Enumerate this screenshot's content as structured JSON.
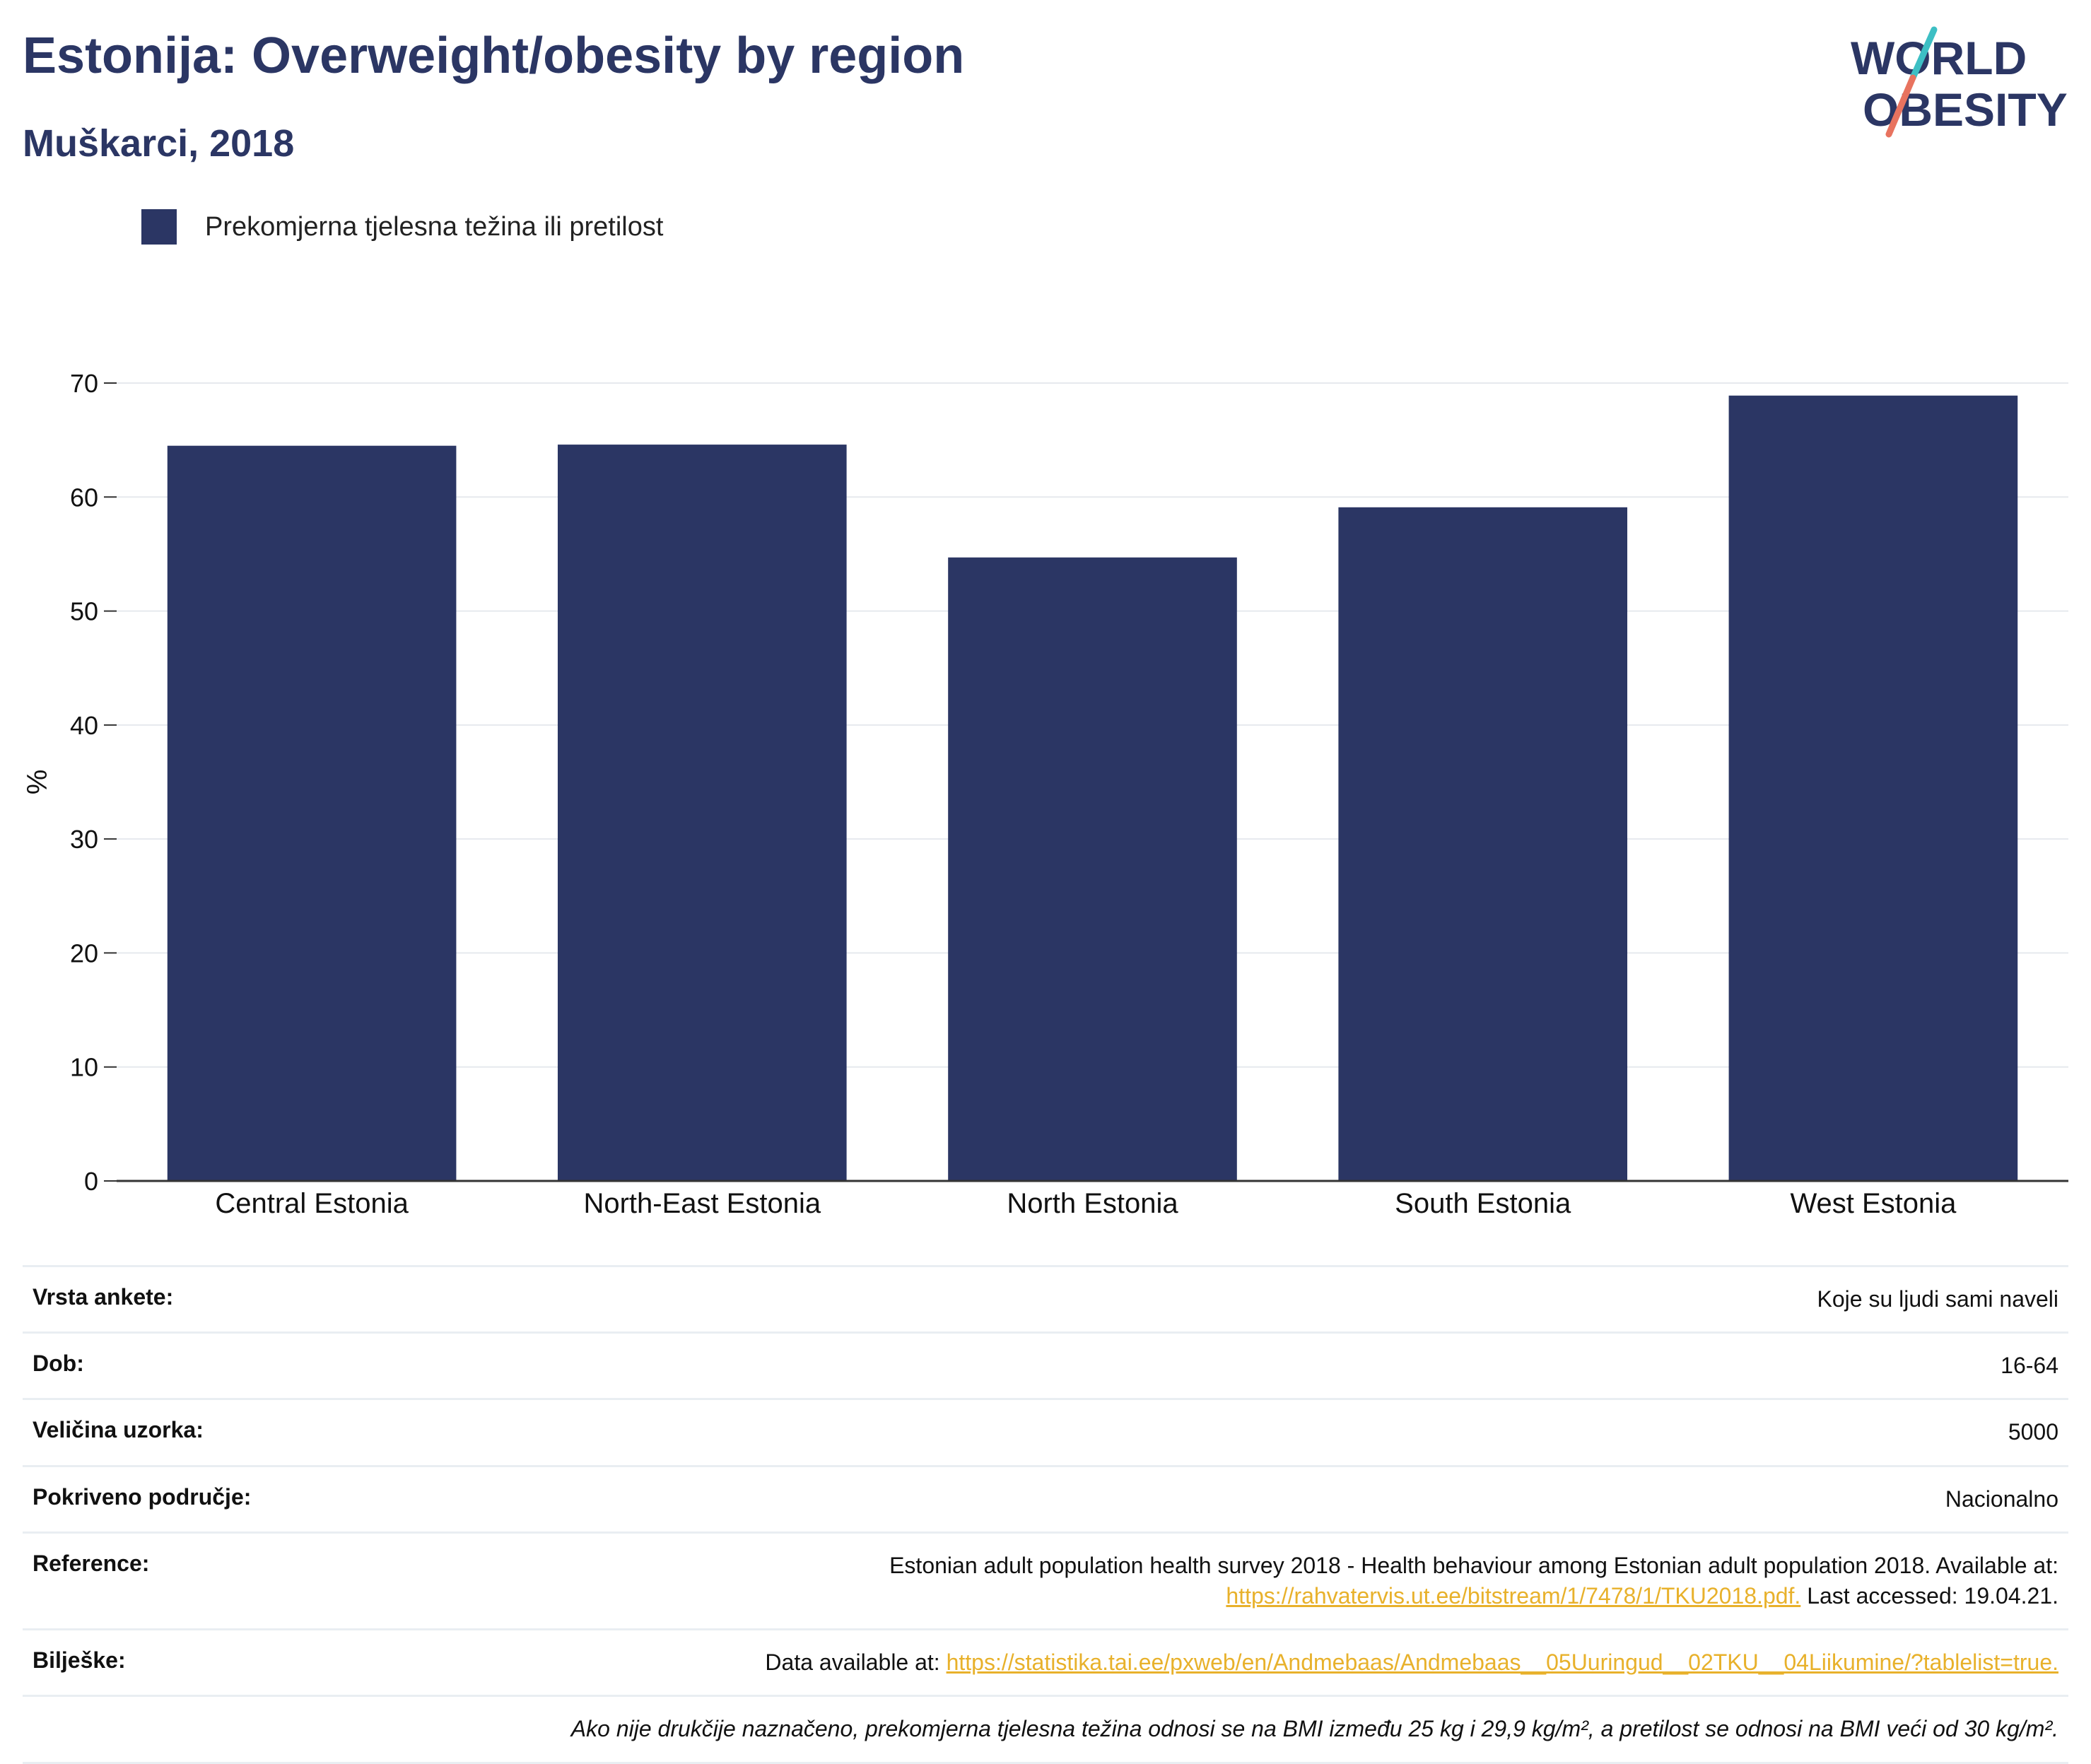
{
  "header": {
    "title": "Estonija: Overweight/obesity by region",
    "subtitle": "Muškarci, 2018"
  },
  "logo": {
    "line1": "WORLD",
    "line2": "OBESITY"
  },
  "legend": {
    "label": "Prekomjerna tjelesna težina ili pretilost"
  },
  "colors": {
    "bar": "#2b3664",
    "accent_teal": "#3dbfc4",
    "accent_red": "#e8735f",
    "link": "#e8b12b"
  },
  "chart_data": {
    "type": "bar",
    "categories": [
      "Central Estonia",
      "North-East Estonia",
      "North Estonia",
      "South Estonia",
      "West Estonia"
    ],
    "series": [
      {
        "name": "Prekomjerna tjelesna težina ili pretilost",
        "values": [
          64.5,
          64.6,
          54.7,
          59.1,
          68.9
        ]
      }
    ],
    "ylabel": "%",
    "ylim": [
      0,
      70
    ],
    "yticks": [
      0,
      10,
      20,
      30,
      40,
      50,
      60,
      70
    ],
    "grid": true,
    "legend_position": "top-left"
  },
  "info": {
    "survey_type_label": "Vrsta ankete:",
    "survey_type_value": "Koje su ljudi sami naveli",
    "age_label": "Dob:",
    "age_value": "16-64",
    "sample_label": "Veličina uzorka:",
    "sample_value": "5000",
    "coverage_label": "Pokriveno područje:",
    "coverage_value": "Nacionalno",
    "reference_label": "Reference:",
    "reference_text": "Estonian adult population health survey 2018 - Health behaviour among Estonian adult population 2018. Available at:",
    "reference_link": "https://rahvatervis.ut.ee/bitstream/1/7478/1/TKU2018.pdf.",
    "reference_suffix": " Last accessed: 19.04.21.",
    "notes_label": "Bilješke:",
    "notes_prefix": "Data available at: ",
    "notes_link": "https://statistika.tai.ee/pxweb/en/Andmebaas/Andmebaas__05Uuringud__02TKU__04Liikumine/?tablelist=true.",
    "footnote": "Ako nije drukčije naznačeno, prekomjerna tjelesna težina odnosi se na BMI između 25 kg i 29,9 kg/m², a pretilost se odnosi na BMI veći od 30 kg/m²."
  }
}
